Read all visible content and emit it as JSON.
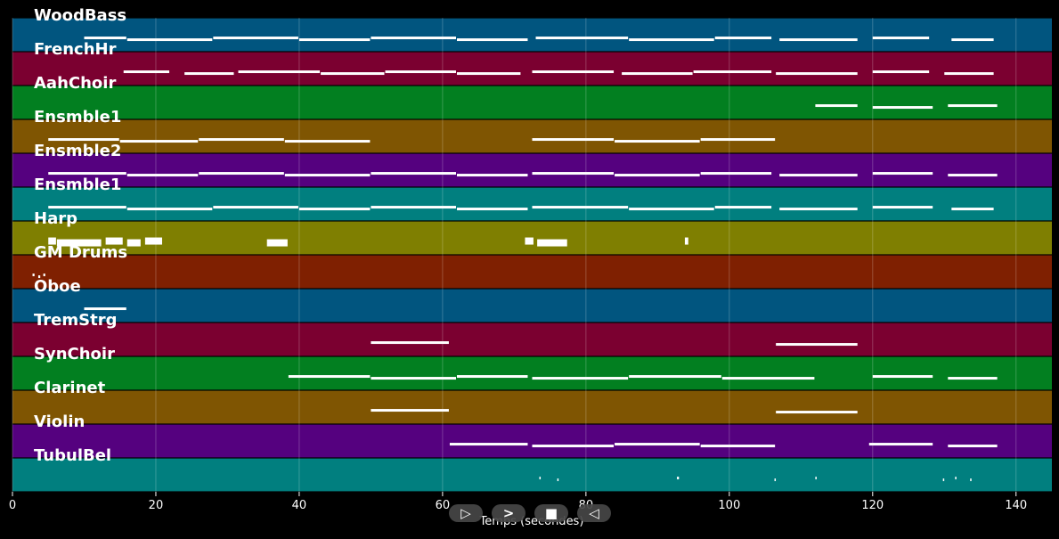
{
  "tracks": [
    {
      "name": "WoodBass",
      "color": "#01557f",
      "segments": [
        [
          10,
          16
        ],
        [
          16,
          28
        ],
        [
          28,
          40
        ],
        [
          40,
          50
        ],
        [
          50,
          62
        ],
        [
          62,
          72
        ],
        [
          73,
          86
        ],
        [
          86,
          98
        ],
        [
          98,
          106
        ],
        [
          107,
          118
        ],
        [
          120,
          128
        ],
        [
          131,
          137
        ]
      ]
    },
    {
      "name": "FrenchHr",
      "color": "#7b0030",
      "segments": [
        [
          15.5,
          22
        ],
        [
          24,
          31
        ],
        [
          31.5,
          43
        ],
        [
          43,
          52
        ],
        [
          52,
          62
        ],
        [
          62,
          71
        ],
        [
          72.5,
          84
        ],
        [
          85,
          95
        ],
        [
          95,
          106
        ],
        [
          106.5,
          118
        ],
        [
          120,
          128
        ],
        [
          130,
          137
        ]
      ]
    },
    {
      "name": "AahChoir",
      "color": "#027f20",
      "segments": [
        [
          112,
          118
        ],
        [
          120,
          128.5
        ],
        [
          130.5,
          137.5
        ]
      ]
    },
    {
      "name": "Ensmble1",
      "color": "#7f5502",
      "segments": [
        [
          5,
          15
        ],
        [
          15,
          26
        ],
        [
          26,
          38
        ],
        [
          38,
          50
        ],
        [
          72.5,
          84
        ],
        [
          84,
          96
        ],
        [
          96,
          106.5
        ]
      ]
    },
    {
      "name": "Ensmble2",
      "color": "#55017f",
      "segments": [
        [
          5,
          16
        ],
        [
          16,
          26
        ],
        [
          26,
          38
        ],
        [
          38,
          50
        ],
        [
          50,
          62
        ],
        [
          62,
          72
        ],
        [
          72.5,
          84
        ],
        [
          84,
          96
        ],
        [
          96,
          106
        ],
        [
          107,
          118
        ],
        [
          120,
          128.5
        ],
        [
          130.5,
          137.5
        ]
      ]
    },
    {
      "name": "Ensmble1",
      "color": "#017f7f",
      "segments": [
        [
          5,
          16
        ],
        [
          16,
          28
        ],
        [
          28,
          40
        ],
        [
          40,
          50
        ],
        [
          50,
          62
        ],
        [
          62,
          72
        ],
        [
          72.5,
          86
        ],
        [
          86,
          98
        ],
        [
          98,
          106
        ],
        [
          107,
          118
        ],
        [
          120,
          128.5
        ],
        [
          131,
          137
        ]
      ]
    },
    {
      "name": "Harp",
      "color": "#7f7f01",
      "segments": [
        [
          5,
          6.2
        ],
        [
          6.2,
          12.5
        ],
        [
          13,
          15.5
        ],
        [
          16,
          18
        ],
        [
          18.5,
          21
        ],
        [
          35.5,
          38.5
        ],
        [
          71.5,
          72.8
        ],
        [
          73.2,
          77.5
        ],
        [
          93.8,
          94.4
        ]
      ]
    },
    {
      "name": "GM Drums",
      "color": "#7f2001",
      "segments": [
        [
          2.8,
          3.2
        ],
        [
          3.6,
          4
        ],
        [
          4.3,
          4.7
        ]
      ]
    },
    {
      "name": "Oboe",
      "color": "#01557f",
      "segments": [
        [
          10,
          16
        ]
      ]
    },
    {
      "name": "TremStrg",
      "color": "#7b0030",
      "segments": [
        [
          50,
          61
        ],
        [
          106.5,
          118
        ]
      ]
    },
    {
      "name": "SynChoir",
      "color": "#027f20",
      "segments": [
        [
          38.5,
          50
        ],
        [
          50,
          62
        ],
        [
          62,
          72
        ],
        [
          72.5,
          86
        ],
        [
          86,
          99
        ],
        [
          99,
          112
        ],
        [
          120,
          128.5
        ],
        [
          130.5,
          137.5
        ]
      ]
    },
    {
      "name": "Clarinet",
      "color": "#7f5502",
      "segments": [
        [
          50,
          61
        ],
        [
          106.5,
          118
        ]
      ]
    },
    {
      "name": "Violin",
      "color": "#55017f",
      "segments": [
        [
          61,
          72
        ],
        [
          72.5,
          84
        ],
        [
          84,
          96
        ],
        [
          96,
          106.5
        ],
        [
          119.5,
          128.5
        ],
        [
          130.5,
          137.5
        ]
      ]
    },
    {
      "name": "TubulBel",
      "color": "#017f7f",
      "segments": [
        [
          73.5,
          73.7
        ],
        [
          76,
          76.3
        ],
        [
          92.7,
          93.1
        ],
        [
          106.3,
          106.6
        ],
        [
          112,
          112.3
        ],
        [
          129.8,
          130.1
        ],
        [
          131.5,
          131.8
        ],
        [
          133.6,
          133.9
        ]
      ]
    }
  ],
  "x_axis": {
    "ticks": [
      0,
      20,
      40,
      60,
      80,
      100,
      120,
      140
    ],
    "tick_labels": [
      "0",
      "20",
      "40",
      "60",
      "80",
      "100",
      "120",
      "140"
    ],
    "label": "Temps (secondes)",
    "range": [
      0,
      145
    ]
  },
  "controls": [
    {
      "icon": "play-icon",
      "glyph": "▷"
    },
    {
      "icon": "forward-icon",
      "glyph": ">"
    },
    {
      "icon": "stop-icon",
      "glyph": "■"
    },
    {
      "icon": "back-icon",
      "glyph": "◁"
    }
  ],
  "note_color": "#ffffff",
  "grid_color": "#ffffff"
}
